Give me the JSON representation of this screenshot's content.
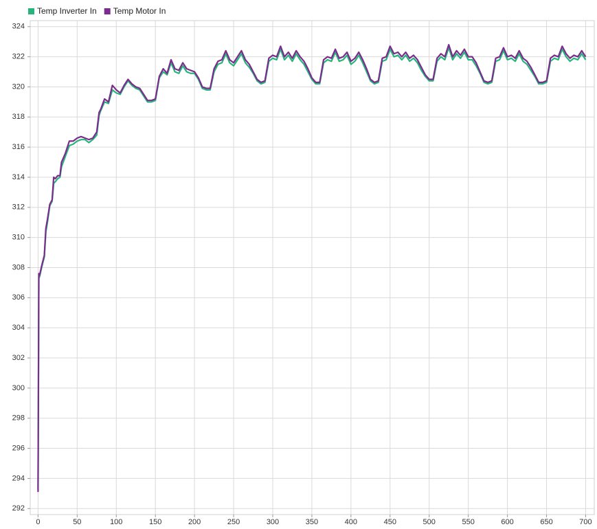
{
  "chart_data": {
    "type": "line",
    "x": [
      0,
      1,
      2,
      5,
      8,
      10,
      12,
      15,
      18,
      20,
      22,
      25,
      28,
      30,
      35,
      40,
      45,
      50,
      55,
      60,
      65,
      70,
      75,
      78,
      80,
      85,
      90,
      95,
      100,
      105,
      110,
      115,
      120,
      125,
      130,
      135,
      140,
      145,
      150,
      155,
      160,
      165,
      170,
      175,
      180,
      185,
      190,
      195,
      200,
      205,
      210,
      215,
      220,
      225,
      230,
      235,
      240,
      245,
      250,
      255,
      260,
      265,
      270,
      275,
      280,
      285,
      290,
      295,
      300,
      305,
      310,
      315,
      320,
      325,
      330,
      335,
      340,
      345,
      350,
      355,
      360,
      365,
      370,
      375,
      380,
      385,
      390,
      395,
      400,
      405,
      410,
      415,
      420,
      425,
      430,
      435,
      440,
      445,
      450,
      455,
      460,
      465,
      470,
      475,
      480,
      485,
      490,
      495,
      500,
      505,
      510,
      515,
      520,
      525,
      530,
      535,
      540,
      545,
      550,
      555,
      560,
      565,
      570,
      575,
      580,
      585,
      590,
      595,
      600,
      605,
      610,
      615,
      620,
      625,
      630,
      635,
      640,
      645,
      650,
      655,
      660,
      665,
      670,
      675,
      680,
      685,
      690,
      695,
      700
    ],
    "series": [
      {
        "name": "Temp Inverter In",
        "color": "#27b47c",
        "values": [
          293.3,
          307.3,
          307.4,
          308.1,
          308.7,
          310.4,
          311.0,
          312.1,
          312.4,
          313.6,
          313.7,
          313.9,
          314.0,
          314.7,
          315.4,
          316.1,
          316.2,
          316.4,
          316.5,
          316.5,
          316.3,
          316.5,
          316.8,
          318.1,
          318.4,
          319.0,
          318.9,
          319.8,
          319.6,
          319.5,
          320.0,
          320.4,
          320.1,
          319.9,
          319.8,
          319.4,
          319.0,
          319.0,
          319.1,
          320.6,
          321.0,
          320.8,
          321.6,
          321.0,
          320.9,
          321.4,
          321.0,
          320.9,
          320.9,
          320.5,
          319.9,
          319.8,
          319.8,
          321.0,
          321.5,
          321.6,
          322.2,
          321.6,
          321.4,
          321.8,
          322.2,
          321.6,
          321.3,
          320.9,
          320.4,
          320.2,
          320.3,
          321.7,
          321.9,
          321.8,
          322.5,
          321.8,
          322.1,
          321.7,
          322.2,
          321.8,
          321.5,
          321.0,
          320.5,
          320.2,
          320.2,
          321.6,
          321.8,
          321.7,
          322.3,
          321.7,
          321.8,
          322.1,
          321.5,
          321.7,
          322.1,
          321.6,
          321.0,
          320.4,
          320.2,
          320.3,
          321.7,
          321.8,
          322.5,
          322.0,
          322.1,
          321.8,
          322.1,
          321.7,
          321.9,
          321.6,
          321.1,
          320.7,
          320.4,
          320.4,
          321.7,
          322.0,
          321.8,
          322.6,
          321.8,
          322.2,
          321.9,
          322.3,
          321.8,
          321.8,
          321.4,
          320.9,
          320.3,
          320.2,
          320.3,
          321.7,
          321.8,
          322.4,
          321.8,
          321.9,
          321.7,
          322.2,
          321.7,
          321.5,
          321.1,
          320.7,
          320.2,
          320.2,
          320.3,
          321.7,
          321.9,
          321.8,
          322.5,
          322.0,
          321.7,
          321.9,
          321.8,
          322.2,
          321.8
        ]
      },
      {
        "name": "Temp Motor In",
        "color": "#7a2d8c",
        "values": [
          293.1,
          307.6,
          307.5,
          308.2,
          308.8,
          310.6,
          311.2,
          312.2,
          312.5,
          314.0,
          313.9,
          314.1,
          314.1,
          315.0,
          315.6,
          316.4,
          316.4,
          316.6,
          316.7,
          316.6,
          316.5,
          316.6,
          317.0,
          318.3,
          318.5,
          319.2,
          319.0,
          320.1,
          319.8,
          319.6,
          320.1,
          320.5,
          320.2,
          320.0,
          319.9,
          319.5,
          319.1,
          319.1,
          319.2,
          320.7,
          321.2,
          320.9,
          321.8,
          321.2,
          321.1,
          321.6,
          321.2,
          321.1,
          321.0,
          320.6,
          320.0,
          319.9,
          319.9,
          321.2,
          321.7,
          321.8,
          322.4,
          321.8,
          321.6,
          322.0,
          322.4,
          321.8,
          321.5,
          321.0,
          320.5,
          320.3,
          320.4,
          321.9,
          322.1,
          322.0,
          322.7,
          322.0,
          322.3,
          321.9,
          322.4,
          322.0,
          321.7,
          321.2,
          320.6,
          320.3,
          320.3,
          321.8,
          322.0,
          321.9,
          322.5,
          321.9,
          322.0,
          322.3,
          321.7,
          321.9,
          322.3,
          321.8,
          321.2,
          320.5,
          320.3,
          320.4,
          321.9,
          322.0,
          322.7,
          322.2,
          322.3,
          322.0,
          322.3,
          321.9,
          322.1,
          321.8,
          321.3,
          320.8,
          320.5,
          320.5,
          321.9,
          322.2,
          322.0,
          322.8,
          322.0,
          322.4,
          322.1,
          322.5,
          322.0,
          322.0,
          321.6,
          321.0,
          320.4,
          320.3,
          320.4,
          321.9,
          322.0,
          322.6,
          322.0,
          322.1,
          321.9,
          322.4,
          321.9,
          321.7,
          321.3,
          320.8,
          320.3,
          320.3,
          320.4,
          321.9,
          322.1,
          322.0,
          322.7,
          322.2,
          321.9,
          322.1,
          322.0,
          322.4,
          322.0
        ]
      }
    ],
    "xlim": [
      -10,
      711
    ],
    "xticks": [
      0,
      50,
      100,
      150,
      200,
      250,
      300,
      350,
      400,
      450,
      500,
      550,
      600,
      650,
      700
    ],
    "ylim": [
      291.6,
      324.4
    ],
    "yticks": [
      292,
      294,
      296,
      298,
      300,
      302,
      304,
      306,
      308,
      310,
      312,
      314,
      316,
      318,
      320,
      322,
      324
    ],
    "grid": true,
    "legend": "top"
  }
}
